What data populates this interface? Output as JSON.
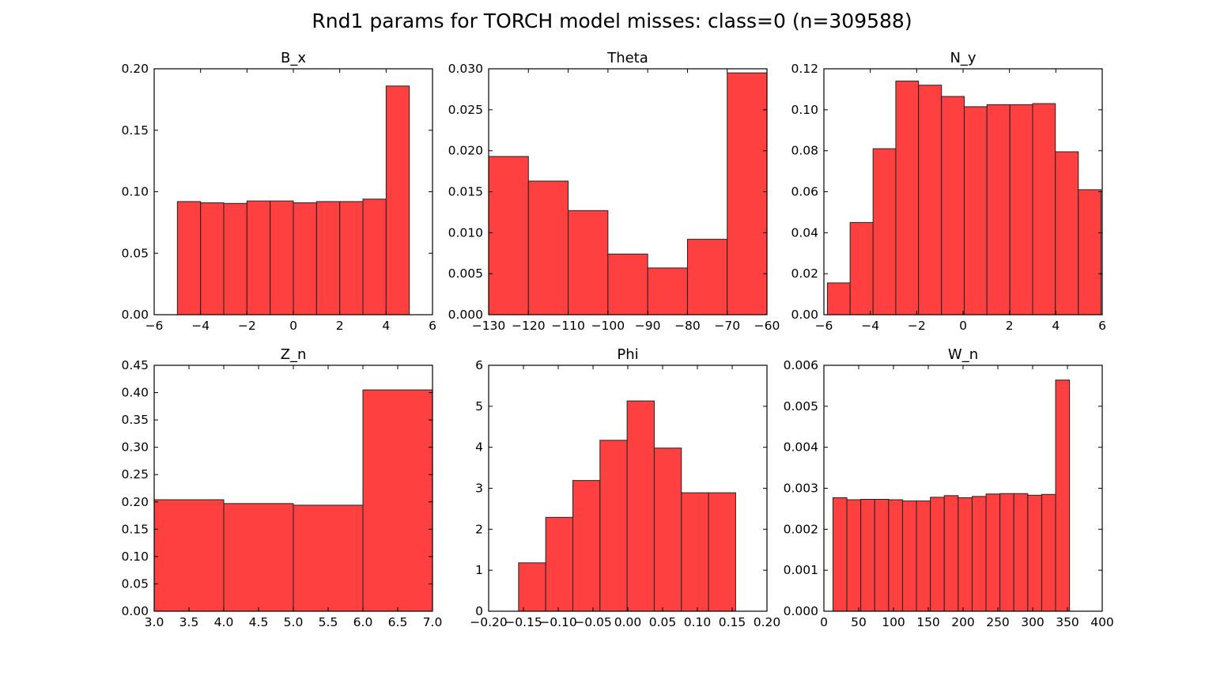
{
  "figure": {
    "title": "Rnd1 params for TORCH model misses: class=0 (n=309588)",
    "bar_color": "#ff4040",
    "edge_color": "#222222"
  },
  "chart_data": [
    {
      "type": "bar",
      "title": "B_x",
      "xlim": [
        -6,
        6
      ],
      "ylim": [
        0,
        0.2
      ],
      "xticks": [
        -6,
        -4,
        -2,
        0,
        2,
        4,
        6
      ],
      "xtick_labels": [
        "−6",
        "−4",
        "−2",
        "0",
        "2",
        "4",
        "6"
      ],
      "yticks": [
        0,
        0.05,
        0.1,
        0.15,
        0.2
      ],
      "ytick_labels": [
        "0.00",
        "0.05",
        "0.10",
        "0.15",
        "0.20"
      ],
      "bin_edges": [
        -5,
        -4,
        -3,
        -2,
        -1,
        0,
        1,
        2,
        3,
        4,
        5
      ],
      "values": [
        0.092,
        0.091,
        0.0905,
        0.0925,
        0.0925,
        0.091,
        0.092,
        0.092,
        0.094,
        0.186
      ]
    },
    {
      "type": "bar",
      "title": "Theta",
      "xlim": [
        -130,
        -60
      ],
      "ylim": [
        0,
        0.03
      ],
      "xticks": [
        -130,
        -120,
        -110,
        -100,
        -90,
        -80,
        -70,
        -60
      ],
      "xtick_labels": [
        "−130",
        "−120",
        "−110",
        "−100",
        "−90",
        "−80",
        "−70",
        "−60"
      ],
      "yticks": [
        0,
        0.005,
        0.01,
        0.015,
        0.02,
        0.025,
        0.03
      ],
      "ytick_labels": [
        "0.000",
        "0.005",
        "0.010",
        "0.015",
        "0.020",
        "0.025",
        "0.030"
      ],
      "bin_edges": [
        -130,
        -120,
        -110,
        -100,
        -90,
        -80,
        -70,
        -60
      ],
      "values": [
        0.0193,
        0.0163,
        0.0127,
        0.0074,
        0.0057,
        0.0092,
        0.0295
      ]
    },
    {
      "type": "bar",
      "title": "N_y",
      "xlim": [
        -6,
        6
      ],
      "ylim": [
        0,
        0.12
      ],
      "xticks": [
        -6,
        -4,
        -2,
        0,
        2,
        4,
        6
      ],
      "xtick_labels": [
        "−6",
        "−4",
        "−2",
        "0",
        "2",
        "4",
        "6"
      ],
      "yticks": [
        0,
        0.02,
        0.04,
        0.06,
        0.08,
        0.1,
        0.12
      ],
      "ytick_labels": [
        "0.00",
        "0.02",
        "0.04",
        "0.06",
        "0.08",
        "0.10",
        "0.12"
      ],
      "bin_edges": [
        -5.85,
        -4.87,
        -3.88,
        -2.9,
        -1.92,
        -0.93,
        0.05,
        1.03,
        2.02,
        3.0,
        3.98,
        4.97,
        5.95
      ],
      "values": [
        0.0155,
        0.045,
        0.081,
        0.114,
        0.112,
        0.1065,
        0.1015,
        0.1025,
        0.1025,
        0.103,
        0.0795,
        0.061
      ]
    },
    {
      "type": "bar",
      "title": "Z_n",
      "xlim": [
        3,
        7
      ],
      "ylim": [
        0,
        0.45
      ],
      "xticks": [
        3,
        3.5,
        4,
        4.5,
        5,
        5.5,
        6,
        6.5,
        7
      ],
      "xtick_labels": [
        "3.0",
        "3.5",
        "4.0",
        "4.5",
        "5.0",
        "5.5",
        "6.0",
        "6.5",
        "7.0"
      ],
      "yticks": [
        0,
        0.05,
        0.1,
        0.15,
        0.2,
        0.25,
        0.3,
        0.35,
        0.4,
        0.45
      ],
      "ytick_labels": [
        "0.00",
        "0.05",
        "0.10",
        "0.15",
        "0.20",
        "0.25",
        "0.30",
        "0.35",
        "0.40",
        "0.45"
      ],
      "bin_edges": [
        3,
        4,
        5,
        6,
        7
      ],
      "values": [
        0.204,
        0.197,
        0.194,
        0.405
      ]
    },
    {
      "type": "bar",
      "title": "Phi",
      "xlim": [
        -0.2,
        0.2
      ],
      "ylim": [
        0,
        6
      ],
      "xticks": [
        -0.2,
        -0.15,
        -0.1,
        -0.05,
        0,
        0.05,
        0.1,
        0.15,
        0.2
      ],
      "xtick_labels": [
        "−0.20",
        "−0.15",
        "−0.10",
        "−0.05",
        "0.00",
        "0.05",
        "0.10",
        "0.15",
        "0.20"
      ],
      "yticks": [
        0,
        1,
        2,
        3,
        4,
        5,
        6
      ],
      "ytick_labels": [
        "0",
        "1",
        "2",
        "3",
        "4",
        "5",
        "6"
      ],
      "bin_edges": [
        -0.157,
        -0.118,
        -0.079,
        -0.04,
        -0.001,
        0.038,
        0.077,
        0.116,
        0.155
      ],
      "values": [
        1.18,
        2.29,
        3.19,
        4.17,
        5.13,
        3.98,
        2.89,
        2.89
      ]
    },
    {
      "type": "bar",
      "title": "W_n",
      "xlim": [
        0,
        400
      ],
      "ylim": [
        0,
        0.006
      ],
      "xticks": [
        0,
        50,
        100,
        150,
        200,
        250,
        300,
        350,
        400
      ],
      "xtick_labels": [
        "0",
        "50",
        "100",
        "150",
        "200",
        "250",
        "300",
        "350",
        "400"
      ],
      "yticks": [
        0,
        0.001,
        0.002,
        0.003,
        0.004,
        0.005,
        0.006
      ],
      "ytick_labels": [
        "0.000",
        "0.001",
        "0.002",
        "0.003",
        "0.004",
        "0.005",
        "0.006"
      ],
      "bin_edges": [
        13,
        33,
        53,
        73,
        93,
        113,
        133,
        153,
        173,
        193,
        213,
        233,
        253,
        273,
        293,
        313,
        333,
        353
      ],
      "values": [
        0.00277,
        0.00272,
        0.00273,
        0.00273,
        0.00272,
        0.00269,
        0.00269,
        0.00278,
        0.00282,
        0.00277,
        0.0028,
        0.00286,
        0.00287,
        0.00287,
        0.00283,
        0.00285,
        0.00564
      ]
    }
  ]
}
